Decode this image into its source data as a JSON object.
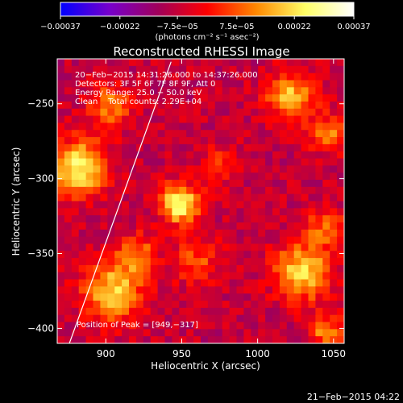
{
  "chart_data": {
    "type": "heatmap",
    "title": "Reconstructed RHESSI Image",
    "xlabel": "Heliocentric X (arcsec)",
    "ylabel": "Heliocentric Y (arcsec)",
    "xlim": [
      868,
      1057
    ],
    "ylim": [
      -410,
      -220
    ],
    "x_ticks": [
      900,
      950,
      1000,
      1050
    ],
    "y_ticks": [
      -250,
      -300,
      -350,
      -400
    ],
    "x_tick_labels": [
      "900",
      "950",
      "1000",
      "1050"
    ],
    "y_tick_labels": [
      "−250",
      "−300",
      "−350",
      "−400"
    ],
    "colorbar": {
      "min": -0.00037,
      "max": 0.00037,
      "tick_values": [
        -0.00037,
        -0.00022,
        -7.5e-05,
        7.5e-05,
        0.00022,
        0.00037
      ],
      "tick_labels": [
        "−0.00037",
        "−0.00022",
        "−7.5e−05",
        "7.5e−05",
        "0.00022",
        "0.00037"
      ],
      "units": "(photons cm⁻² s⁻¹ asec⁻²)",
      "colors": [
        "#0000ff",
        "#7700cc",
        "#a0005a",
        "#ff0000",
        "#ff8800",
        "#ffff66",
        "#ffffff"
      ]
    },
    "annotations": [
      "20−Feb−2015 14:31:26.000 to 14:37:26.000",
      "Detectors: 3F 5F 6F 7F 8F 9F, Att 0",
      "Energy Range: 25.0 − 50.0 keV",
      "Clean    Total counts: 2.29E+04"
    ],
    "peak_label": "Position of Peak = [949,−317]",
    "peak": [
      949,
      -317
    ],
    "limb_line": [
      [
        876,
        -410
      ],
      [
        943,
        -222
      ]
    ],
    "sources": [
      {
        "x": 949,
        "y": -317,
        "peak": 0.00037,
        "sigma": 9
      },
      {
        "x": 882,
        "y": -293,
        "peak": 0.00033,
        "sigma": 13
      },
      {
        "x": 902,
        "y": -252,
        "peak": 0.0002,
        "sigma": 10
      },
      {
        "x": 1022,
        "y": -245,
        "peak": 0.00026,
        "sigma": 11
      },
      {
        "x": 1047,
        "y": -270,
        "peak": 0.00018,
        "sigma": 9
      },
      {
        "x": 1030,
        "y": -362,
        "peak": 0.0003,
        "sigma": 13
      },
      {
        "x": 1044,
        "y": -332,
        "peak": 0.00016,
        "sigma": 9
      },
      {
        "x": 1045,
        "y": -402,
        "peak": 0.0002,
        "sigma": 8
      },
      {
        "x": 905,
        "y": -375,
        "peak": 0.00028,
        "sigma": 14
      },
      {
        "x": 920,
        "y": -350,
        "peak": 0.00018,
        "sigma": 9
      },
      {
        "x": 975,
        "y": -290,
        "peak": 0.00012,
        "sigma": 9
      },
      {
        "x": 960,
        "y": -355,
        "peak": 0.00014,
        "sigma": 11
      }
    ],
    "background_level": -8e-05
  },
  "footer_date": "21−Feb−2015 04:22"
}
